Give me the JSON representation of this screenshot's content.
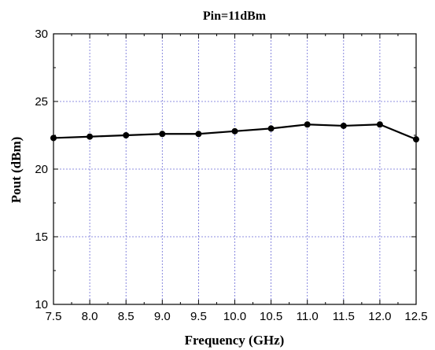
{
  "chart_data": {
    "type": "line",
    "title": "Pin=11dBm",
    "xlabel": "Frequency (GHz)",
    "ylabel": "Pout (dBm)",
    "xlim": [
      7.5,
      12.5
    ],
    "ylim": [
      10,
      30
    ],
    "x_ticks": [
      7.5,
      8.0,
      8.5,
      9.0,
      9.5,
      10.0,
      10.5,
      11.0,
      11.5,
      12.0,
      12.5
    ],
    "x_tick_labels": [
      "7.5",
      "8.0",
      "8.5",
      "9.0",
      "9.5",
      "10.0",
      "10.5",
      "11.0",
      "11.5",
      "12.0",
      "12.5"
    ],
    "y_ticks": [
      10,
      15,
      20,
      25,
      30
    ],
    "y_tick_labels": [
      "10",
      "15",
      "20",
      "25",
      "30"
    ],
    "grid": true,
    "grid_color": "#6b6bd6",
    "line_color": "#000000",
    "series": [
      {
        "x": [
          7.5,
          8.0,
          8.5,
          9.0,
          9.5,
          10.0,
          10.5,
          11.0,
          11.5,
          12.0,
          12.5
        ],
        "y": [
          22.3,
          22.4,
          22.5,
          22.6,
          22.6,
          22.8,
          23.0,
          23.3,
          23.2,
          23.3,
          22.2
        ]
      }
    ]
  }
}
